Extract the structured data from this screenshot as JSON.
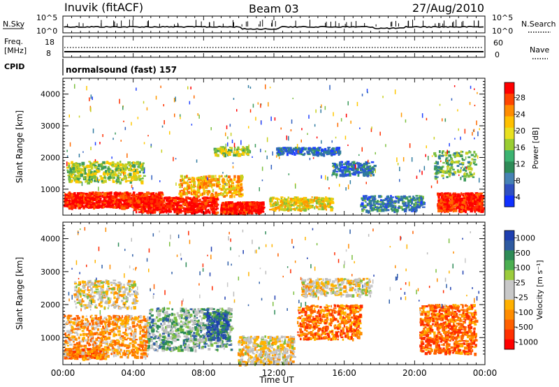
{
  "header": {
    "station": "Inuvik (fitACF)",
    "beam": "Beam 03",
    "date": "27/Aug/2010"
  },
  "top_panel": {
    "left_label": "N.Sky",
    "left_ticks": [
      "10^5",
      "10^0"
    ],
    "right_label": "N.Search",
    "right_ticks": [
      "10^5",
      "10^0"
    ]
  },
  "freq_panel": {
    "left_label_1": "Freq.",
    "left_label_2": "[MHz]",
    "left_ticks": [
      "18",
      "8"
    ],
    "right_label": "Nave",
    "right_ticks": [
      "60",
      "0"
    ]
  },
  "cpid_panel": {
    "label": "CPID",
    "program": "normalsound (fast) 157"
  },
  "chart_data": [
    {
      "type": "heatmap",
      "name": "power",
      "ylabel": "Slant Range [km]",
      "ylim": [
        180,
        4500
      ],
      "yticks": [
        "1000",
        "2000",
        "3000",
        "4000"
      ],
      "xlim": [
        "00:00",
        "24:00"
      ],
      "colorbar_label": "Power [dB]",
      "colorbar_ticks": [
        "28",
        "24",
        "20",
        "16",
        "12",
        "8",
        "4"
      ],
      "colorbar_colors": [
        "#ff0000",
        "#ff4500",
        "#ff8c00",
        "#ffc000",
        "#e8e020",
        "#9acd32",
        "#3cb371",
        "#2e8b57",
        "#4682b4",
        "#3050c0",
        "#1030ff"
      ]
    },
    {
      "type": "heatmap",
      "name": "velocity",
      "ylabel": "Slant Range [km]",
      "ylim": [
        180,
        4500
      ],
      "yticks": [
        "1000",
        "2000",
        "3000",
        "4000"
      ],
      "xlim": [
        "00:00",
        "24:00"
      ],
      "colorbar_label": "Velocity [m s⁻¹]",
      "colorbar_ticks": [
        "1000",
        "500",
        "100",
        "25",
        "-25",
        "-100",
        "-500",
        "-1000"
      ],
      "colorbar_colors": [
        "#1e3fb0",
        "#2e5aa0",
        "#2e8b57",
        "#4caf50",
        "#9ccc3c",
        "#c8c8c8",
        "#c8c8c8",
        "#ffb000",
        "#ff8c00",
        "#ff6000",
        "#ff3000",
        "#ff0000"
      ]
    }
  ],
  "xaxis": {
    "ticks": [
      "00:00",
      "04:00",
      "08:00",
      "12:00",
      "16:00",
      "20:00",
      "00:00"
    ],
    "label": "Time UT"
  }
}
